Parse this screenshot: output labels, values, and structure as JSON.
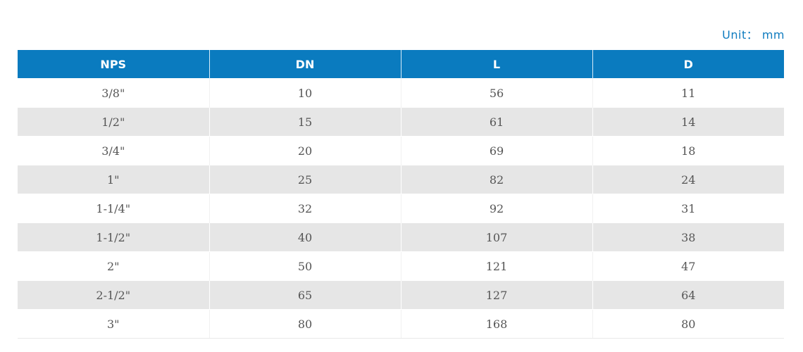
{
  "unit_label": "Unit： mm",
  "table": {
    "headers": [
      "NPS",
      "DN",
      "L",
      "D"
    ],
    "rows": [
      [
        "3/8\"",
        "10",
        "56",
        "11"
      ],
      [
        "1/2\"",
        "15",
        "61",
        "14"
      ],
      [
        "3/4\"",
        "20",
        "69",
        "18"
      ],
      [
        "1\"",
        "25",
        "82",
        "24"
      ],
      [
        "1-1/4\"",
        "32",
        "92",
        "31"
      ],
      [
        "1-1/2\"",
        "40",
        "107",
        "38"
      ],
      [
        "2\"",
        "50",
        "121",
        "47"
      ],
      [
        "2-1/2\"",
        "65",
        "127",
        "64"
      ],
      [
        "3\"",
        "80",
        "168",
        "80"
      ]
    ]
  },
  "colors": {
    "header_bg": "#0a7bbf",
    "unit_text": "#0e7bbf",
    "stripe": "#e6e6e6"
  }
}
